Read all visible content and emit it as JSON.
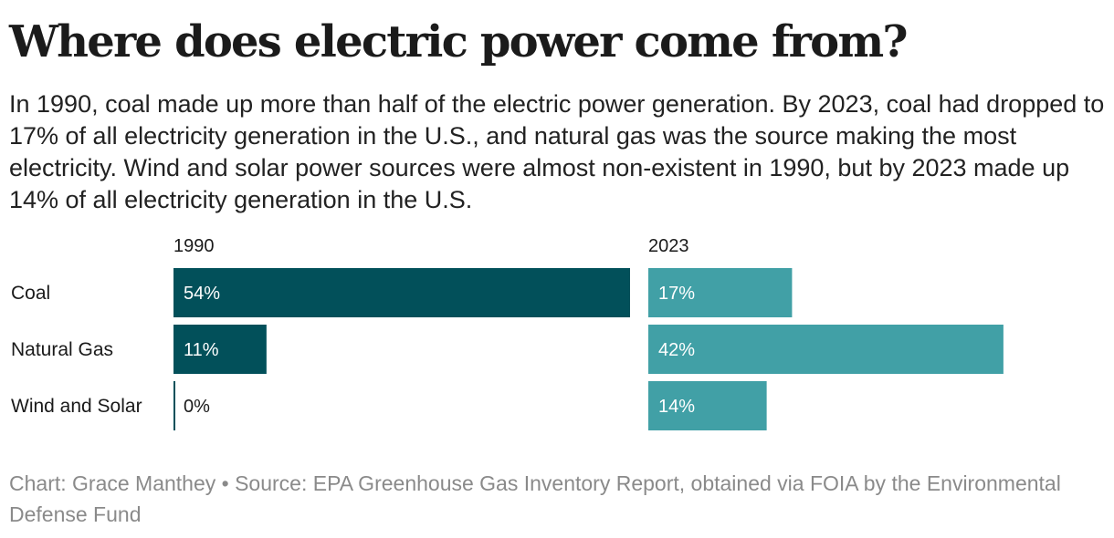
{
  "title": "Where does electric power come from?",
  "subtitle": "In 1990, coal made up more than half of the electric power generation. By 2023, coal had dropped to 17% of all electricity generation in the U.S., and natural gas was the source making the most electricity. Wind and solar power sources were almost non-existent in 1990, but by 2023 made up 14% of all electricity generation in the U.S.",
  "footer": "Chart: Grace Manthey • Source: EPA Greenhouse Gas Inventory Report, obtained via FOIA by the Environmental Defense Fund",
  "chart_data": {
    "type": "bar",
    "orientation": "horizontal",
    "layout": "small-multiples",
    "categories": [
      "Coal",
      "Natural Gas",
      "Wind and Solar"
    ],
    "series": [
      {
        "name": "1990",
        "values": [
          54,
          11,
          0
        ],
        "labels": [
          "54%",
          "11%",
          "0%"
        ],
        "color": "#02505a"
      },
      {
        "name": "2023",
        "values": [
          17,
          42,
          14
        ],
        "labels": [
          "17%",
          "42%",
          "14%"
        ],
        "color": "#41a0a6"
      }
    ],
    "unit": "%",
    "xlim": [
      0,
      54
    ],
    "grid": false,
    "legend": "none"
  }
}
